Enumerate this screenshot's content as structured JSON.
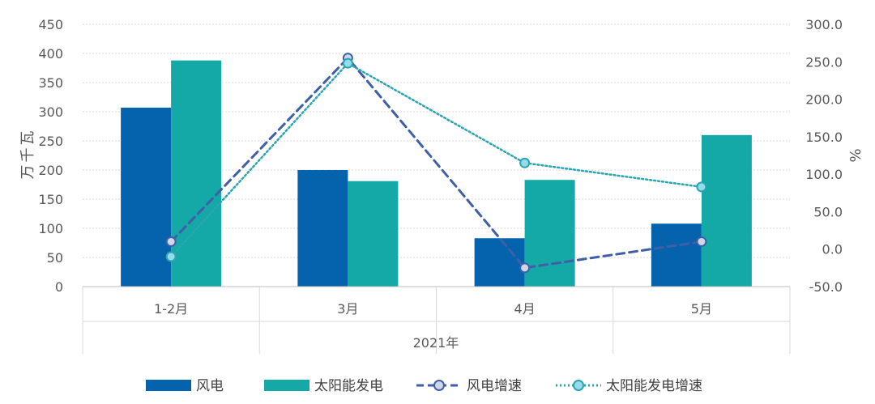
{
  "chart_data": {
    "type": "bar",
    "title": "",
    "categories": [
      "1-2月",
      "3月",
      "4月",
      "5月"
    ],
    "group_label": "2021年",
    "ylabel_left": "万千瓦",
    "ylabel_right": "%",
    "ylim_left": [
      0,
      450
    ],
    "yticks_left": [
      "0",
      "50",
      "100",
      "150",
      "200",
      "250",
      "300",
      "350",
      "400",
      "450"
    ],
    "ylim_right": [
      -50,
      300
    ],
    "yticks_right": [
      "-50.0",
      "0.0",
      "50.0",
      "100.0",
      "150.0",
      "200.0",
      "250.0",
      "300.0"
    ],
    "grid": true,
    "legend_position": "bottom",
    "series": [
      {
        "name": "风电",
        "kind": "bar",
        "axis": "left",
        "color": "#0563ad",
        "values": [
          307,
          200,
          83,
          108
        ]
      },
      {
        "name": "太阳能发电",
        "kind": "bar",
        "axis": "left",
        "color": "#14a8a6",
        "values": [
          388,
          181,
          183,
          260
        ]
      },
      {
        "name": "风电增速",
        "kind": "line",
        "style": "dashed",
        "axis": "right",
        "color": "#3f5fa6",
        "marker_fill": "#ced7e8",
        "values": [
          10,
          255,
          -25,
          10
        ]
      },
      {
        "name": "太阳能发电增速",
        "kind": "line",
        "style": "dotted",
        "axis": "right",
        "color": "#2aa5b1",
        "marker_fill": "#96dbe8",
        "values": [
          -10,
          248,
          115,
          83
        ]
      }
    ]
  }
}
